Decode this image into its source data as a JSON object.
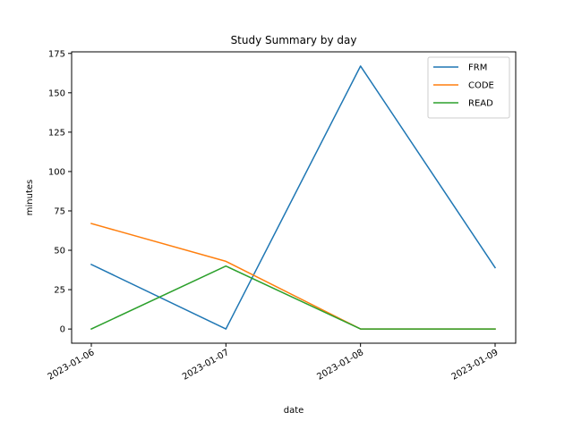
{
  "chart_data": {
    "type": "line",
    "title": "Study Summary by day",
    "xlabel": "date",
    "ylabel": "minutes",
    "categories": [
      "2023-01-06",
      "2023-01-07",
      "2023-01-08",
      "2023-01-09"
    ],
    "y_ticks": [
      0,
      25,
      50,
      75,
      100,
      125,
      150,
      175
    ],
    "ylim": [
      -9,
      176
    ],
    "grid": false,
    "legend_position": "top-right",
    "series": [
      {
        "name": "FRM",
        "color": "#1f77b4",
        "values": [
          41,
          0,
          167,
          39
        ]
      },
      {
        "name": "CODE",
        "color": "#ff7f0e",
        "values": [
          67,
          43,
          0,
          0
        ]
      },
      {
        "name": "READ",
        "color": "#2ca02c",
        "values": [
          0,
          40,
          0,
          0
        ]
      }
    ]
  }
}
